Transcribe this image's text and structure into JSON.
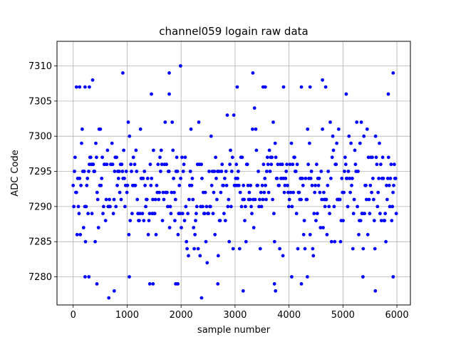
{
  "chart_data": {
    "type": "scatter",
    "title": "channel059 logain raw data",
    "xlabel": "sample number",
    "ylabel": "ADC Code",
    "xlim": [
      -300,
      6250
    ],
    "ylim": [
      7276,
      7313.5
    ],
    "xticks": [
      0,
      1000,
      2000,
      3000,
      4000,
      5000,
      6000
    ],
    "yticks": [
      7280,
      7285,
      7290,
      7295,
      7300,
      7305,
      7310
    ],
    "grid": true,
    "marker_color": "#0000ff",
    "n_samples": 6000,
    "x_step": 12,
    "value_range": [
      7277,
      7310
    ],
    "core_band": [
      7283,
      7302
    ],
    "outliers": [
      {
        "x": 660,
        "y": 7277
      },
      {
        "x": 760,
        "y": 7278
      },
      {
        "x": 2380,
        "y": 7277
      },
      {
        "x": 3150,
        "y": 7278
      },
      {
        "x": 5600,
        "y": 7278
      },
      {
        "x": 1990,
        "y": 7310
      },
      {
        "x": 920,
        "y": 7309
      },
      {
        "x": 1780,
        "y": 7309
      },
      {
        "x": 3330,
        "y": 7309
      },
      {
        "x": 5930,
        "y": 7309
      },
      {
        "x": 360,
        "y": 7308
      },
      {
        "x": 4620,
        "y": 7308
      },
      {
        "x": 60,
        "y": 7307
      },
      {
        "x": 120,
        "y": 7307
      },
      {
        "x": 220,
        "y": 7307
      },
      {
        "x": 300,
        "y": 7307
      },
      {
        "x": 3040,
        "y": 7307
      },
      {
        "x": 3520,
        "y": 7307
      },
      {
        "x": 3560,
        "y": 7307
      },
      {
        "x": 3900,
        "y": 7307
      },
      {
        "x": 4230,
        "y": 7307
      },
      {
        "x": 4390,
        "y": 7307
      },
      {
        "x": 4680,
        "y": 7307
      },
      {
        "x": 1450,
        "y": 7306
      },
      {
        "x": 1780,
        "y": 7306
      },
      {
        "x": 5060,
        "y": 7306
      },
      {
        "x": 5840,
        "y": 7306
      },
      {
        "x": 220,
        "y": 7280
      },
      {
        "x": 290,
        "y": 7280
      },
      {
        "x": 440,
        "y": 7279
      },
      {
        "x": 1040,
        "y": 7280
      },
      {
        "x": 1420,
        "y": 7279
      },
      {
        "x": 1480,
        "y": 7279
      },
      {
        "x": 1900,
        "y": 7279
      },
      {
        "x": 1940,
        "y": 7279
      },
      {
        "x": 2680,
        "y": 7279
      },
      {
        "x": 3730,
        "y": 7279
      },
      {
        "x": 3750,
        "y": 7278
      },
      {
        "x": 4050,
        "y": 7280
      },
      {
        "x": 4230,
        "y": 7279
      },
      {
        "x": 4340,
        "y": 7280
      },
      {
        "x": 5370,
        "y": 7280
      },
      {
        "x": 5930,
        "y": 7280
      }
    ]
  }
}
